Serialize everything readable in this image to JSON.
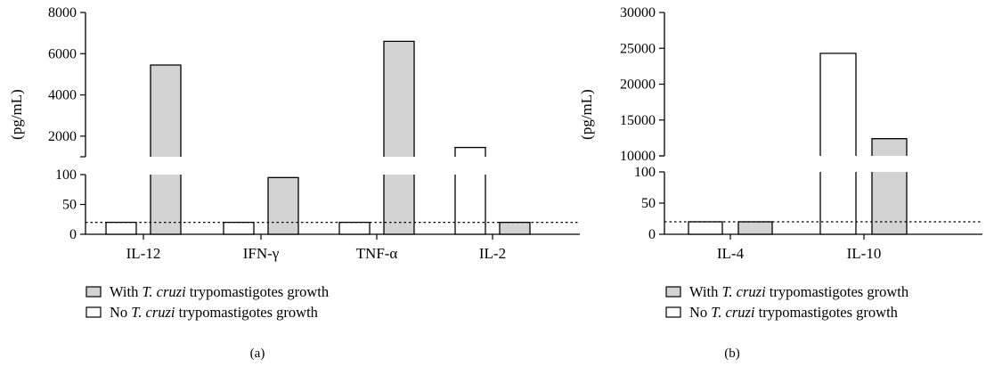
{
  "chart_data": [
    {
      "type": "bar",
      "panel_label": "(a)",
      "ylabel": "(pg/mL)",
      "categories": [
        "IL-12",
        "IFN-γ",
        "TNF-α",
        "IL-2"
      ],
      "series": [
        {
          "name": "No T. cruzi trypomastigotes growth",
          "values": [
            20,
            20,
            20,
            1450
          ]
        },
        {
          "name": "With T. cruzi trypomastigotes growth",
          "values": [
            5450,
            95,
            6600,
            20
          ]
        }
      ],
      "y_axis_break": true,
      "ylim_lower": [
        0,
        100
      ],
      "ylim_upper": [
        1000,
        8000
      ],
      "yticks_lower": [
        "0",
        "50",
        "100"
      ],
      "yticks_upper": [
        "2000",
        "4000",
        "6000",
        "8000"
      ],
      "detection_limit": 20
    },
    {
      "type": "bar",
      "panel_label": "(b)",
      "ylabel": "(pg/mL)",
      "categories": [
        "IL-4",
        "IL-10"
      ],
      "series": [
        {
          "name": "No T. cruzi trypomastigotes growth",
          "values": [
            20,
            24300
          ]
        },
        {
          "name": "With T. cruzi trypomastigotes growth",
          "values": [
            20,
            12400
          ]
        }
      ],
      "y_axis_break": true,
      "ylim_lower": [
        0,
        100
      ],
      "ylim_upper": [
        10000,
        30000
      ],
      "yticks_lower": [
        "0",
        "50",
        "100"
      ],
      "yticks_upper": [
        "10000",
        "15000",
        "20000",
        "25000",
        "30000"
      ],
      "detection_limit": 20
    }
  ],
  "legend": {
    "with": {
      "prefix": "With ",
      "italic": "T. cruzi",
      "suffix": " trypomastigotes growth",
      "color": "#d3d3d3"
    },
    "without": {
      "prefix": "No ",
      "italic": "T. cruzi",
      "suffix": " trypomastigotes growth",
      "color": "#ffffff"
    }
  }
}
